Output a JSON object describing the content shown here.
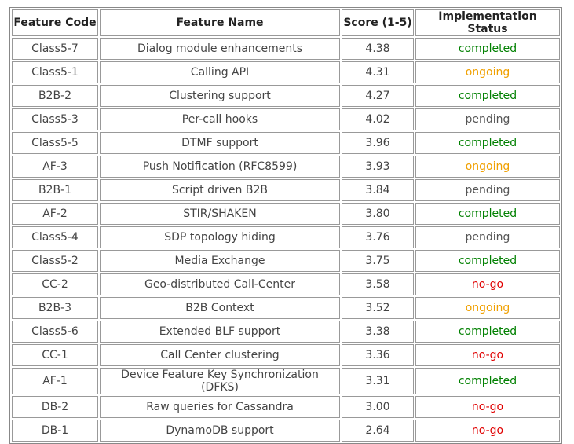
{
  "table": {
    "headers": [
      "Feature Code",
      "Feature Name",
      "Score (1-5)",
      "Implementation Status"
    ],
    "rows": [
      [
        "Class5-7",
        "Dialog module enhancements",
        "4.38",
        "completed"
      ],
      [
        "Class5-1",
        "Calling API",
        "4.31",
        "ongoing"
      ],
      [
        "B2B-2",
        "Clustering support",
        "4.27",
        "completed"
      ],
      [
        "Class5-3",
        "Per-call hooks",
        "4.02",
        "pending"
      ],
      [
        "Class5-5",
        "DTMF support",
        "3.96",
        "completed"
      ],
      [
        "AF-3",
        "Push Notification (RFC8599)",
        "3.93",
        "ongoing"
      ],
      [
        "B2B-1",
        "Script driven B2B",
        "3.84",
        "pending"
      ],
      [
        "AF-2",
        "STIR/SHAKEN",
        "3.80",
        "completed"
      ],
      [
        "Class5-4",
        "SDP topology hiding",
        "3.76",
        "pending"
      ],
      [
        "Class5-2",
        "Media Exchange",
        "3.75",
        "completed"
      ],
      [
        "CC-2",
        "Geo-distributed Call-Center",
        "3.58",
        "no-go"
      ],
      [
        "B2B-3",
        "B2B Context",
        "3.52",
        "ongoing"
      ],
      [
        "Class5-6",
        "Extended BLF support",
        "3.38",
        "completed"
      ],
      [
        "CC-1",
        "Call Center clustering",
        "3.36",
        "no-go"
      ],
      [
        "AF-1",
        "Device Feature Key Synchronization (DFKS)",
        "3.31",
        "completed"
      ],
      [
        "DB-2",
        "Raw queries for Cassandra",
        "3.00",
        "no-go"
      ],
      [
        "DB-1",
        "DynamoDB support",
        "2.64",
        "no-go"
      ]
    ],
    "status_colors": {
      "completed": "#008000",
      "ongoing": "#f0a000",
      "pending": "#555555",
      "no-go": "#e00000"
    }
  }
}
